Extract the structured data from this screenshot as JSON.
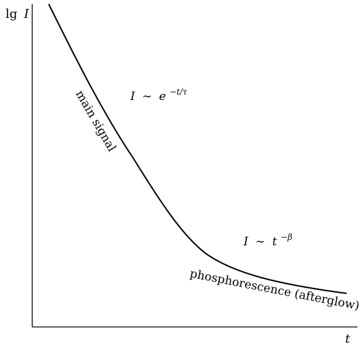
{
  "diagram": {
    "y_axis_label": {
      "func": "lg",
      "var": "I"
    },
    "x_axis_label": "t",
    "curve_label_main": "main signal",
    "curve_label_tail": "phosphorescence (afterglow)",
    "law_exponential": {
      "lhs": "I",
      "rel": "∼",
      "base": "e",
      "exponent": "−t/τ"
    },
    "law_power": {
      "lhs": "I",
      "rel": "∼",
      "base": "t",
      "exponent": "−β"
    },
    "colors": {
      "ink": "#000000",
      "background": "#ffffff"
    }
  }
}
